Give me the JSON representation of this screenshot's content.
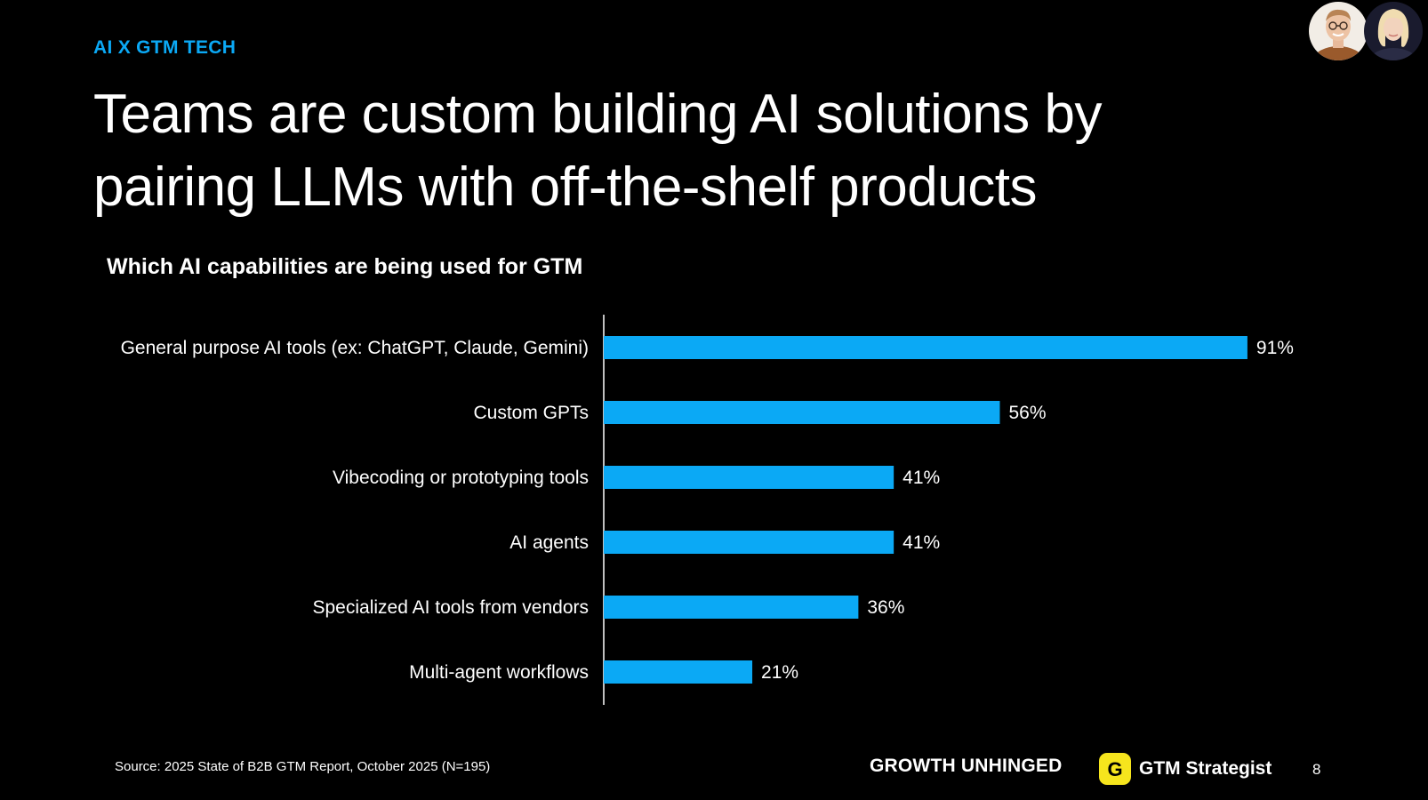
{
  "slide": {
    "eyebrow": "AI X GTM TECH",
    "headline_line1": "Teams are custom building AI solutions by",
    "headline_line2": "pairing LLMs with off-the-shelf products",
    "page_number": "8"
  },
  "footer": {
    "source": "Source: 2025 State of B2B GTM Report, October 2025 (N=195)",
    "brand_growth": "GROWTH UNHINGED",
    "brand_gtm": "GTM Strategist",
    "brand_gtm_logo_letter": "G"
  },
  "colors": {
    "background": "#000000",
    "accent": "#0ba9f5",
    "bar": "#0ba9f5",
    "text": "#ffffff",
    "logo_yellow": "#f6e51d"
  },
  "chart_data": {
    "type": "bar",
    "orientation": "horizontal",
    "title": "Which AI capabilities are being used for GTM",
    "categories": [
      "General purpose AI tools (ex: ChatGPT, Claude, Gemini)",
      "Custom GPTs",
      "Vibecoding or prototyping tools",
      "AI agents",
      "Specialized AI tools from vendors",
      "Multi-agent workflows"
    ],
    "values": [
      91,
      56,
      41,
      41,
      36,
      21
    ],
    "value_labels": [
      "91%",
      "56%",
      "41%",
      "41%",
      "36%",
      "21%"
    ],
    "xlim": [
      0,
      100
    ],
    "unit": "%",
    "grid": false,
    "legend": "none"
  }
}
